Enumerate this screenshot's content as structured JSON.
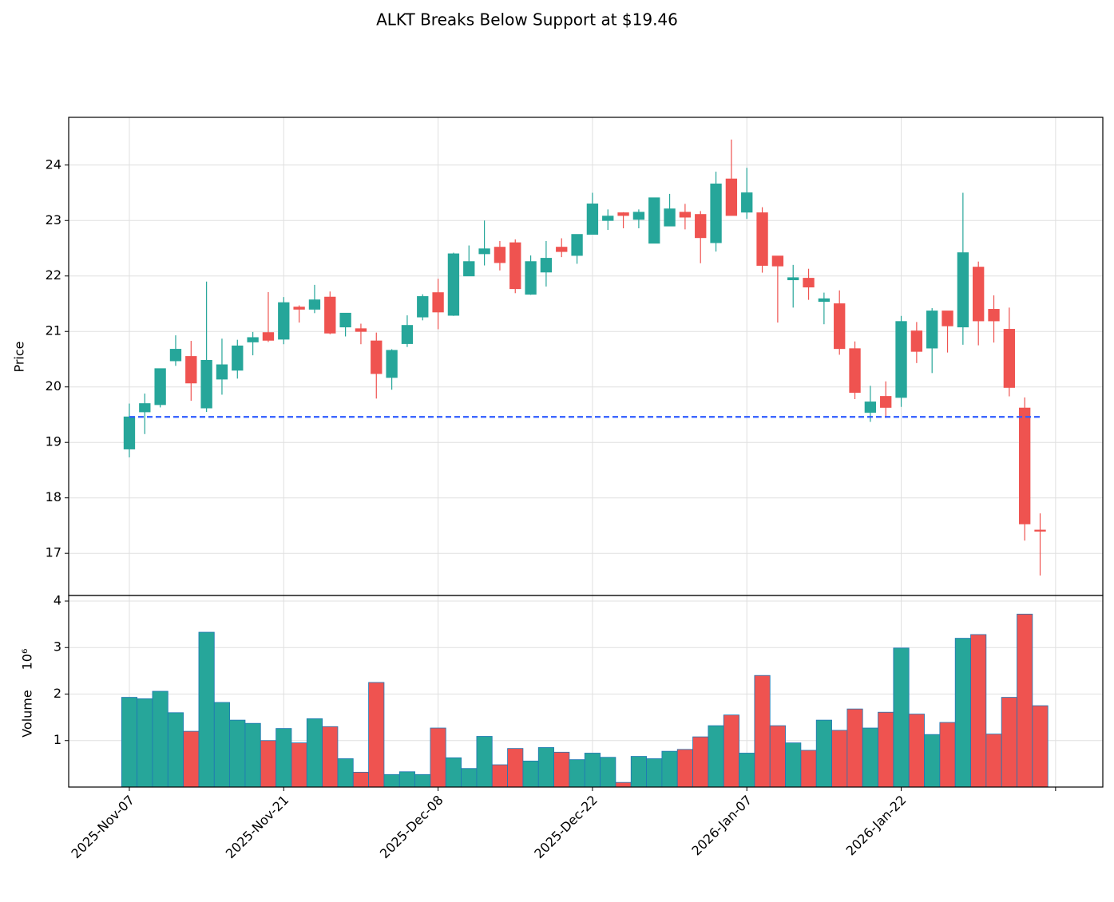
{
  "chart_data": {
    "type": "candlestick",
    "title": "ALKT Breaks Below Support at $19.46",
    "categories": [
      "2025-Nov-07",
      null,
      null,
      null,
      null,
      null,
      null,
      null,
      null,
      null,
      "2025-Nov-21",
      null,
      null,
      null,
      null,
      null,
      null,
      null,
      null,
      null,
      "2025-Dec-08",
      null,
      null,
      null,
      null,
      null,
      null,
      null,
      null,
      null,
      "2025-Dec-22",
      null,
      null,
      null,
      null,
      null,
      null,
      null,
      null,
      null,
      "2026-Jan-07",
      null,
      null,
      null,
      null,
      null,
      null,
      null,
      null,
      null,
      "2026-Jan-22",
      null,
      null,
      null,
      null,
      null,
      null,
      null,
      null,
      null
    ],
    "xlim": [
      -3.93,
      63.06
    ],
    "xticks": [
      0,
      10,
      20,
      30,
      40,
      50,
      60
    ],
    "open": [
      18.88,
      19.55,
      19.68,
      20.47,
      20.55,
      19.62,
      20.14,
      20.3,
      20.81,
      20.98,
      20.86,
      21.44,
      21.4,
      21.62,
      21.08,
      21.05,
      20.83,
      20.17,
      20.78,
      21.26,
      21.7,
      21.29,
      22.0,
      22.4,
      22.52,
      22.6,
      21.67,
      22.07,
      22.52,
      22.37,
      22.75,
      23.0,
      23.14,
      23.02,
      22.59,
      22.9,
      23.15,
      23.11,
      22.6,
      23.75,
      23.15,
      23.14,
      22.36,
      21.93,
      21.96,
      21.54,
      21.5,
      20.69,
      19.54,
      19.83,
      19.81,
      21.01,
      20.7,
      21.37,
      21.08,
      22.16,
      21.4,
      21.04,
      19.62,
      17.42
    ],
    "high": [
      19.7,
      19.88,
      20.33,
      20.93,
      20.83,
      21.9,
      20.87,
      20.85,
      20.99,
      21.71,
      21.62,
      21.47,
      21.84,
      21.72,
      21.33,
      21.14,
      20.98,
      20.68,
      21.29,
      21.67,
      21.95,
      22.42,
      22.55,
      23.0,
      22.63,
      22.66,
      22.37,
      22.63,
      22.68,
      22.75,
      23.5,
      23.2,
      23.15,
      23.2,
      23.41,
      23.48,
      23.3,
      23.17,
      23.88,
      24.46,
      23.95,
      23.24,
      22.36,
      22.2,
      22.13,
      21.7,
      21.74,
      20.82,
      20.02,
      20.1,
      21.28,
      21.17,
      21.42,
      21.37,
      23.5,
      22.26,
      21.65,
      21.43,
      19.81,
      17.72
    ],
    "low": [
      18.73,
      19.15,
      19.63,
      20.38,
      19.75,
      19.55,
      19.86,
      20.15,
      20.57,
      20.81,
      20.77,
      21.16,
      21.33,
      20.95,
      20.91,
      20.77,
      19.79,
      19.95,
      20.72,
      21.2,
      21.04,
      21.28,
      22.0,
      22.19,
      22.1,
      21.69,
      21.66,
      21.81,
      22.34,
      22.22,
      22.75,
      22.83,
      22.86,
      22.86,
      22.59,
      22.9,
      22.84,
      22.23,
      22.44,
      23.09,
      23.03,
      22.06,
      21.16,
      21.43,
      21.57,
      21.13,
      20.58,
      19.78,
      19.37,
      19.44,
      19.64,
      20.43,
      20.25,
      20.62,
      20.76,
      20.75,
      20.8,
      19.83,
      17.23,
      16.6
    ],
    "close": [
      19.46,
      19.7,
      20.33,
      20.68,
      20.07,
      20.48,
      20.4,
      20.74,
      20.89,
      20.84,
      21.52,
      21.4,
      21.57,
      20.97,
      21.33,
      21.0,
      20.24,
      20.66,
      21.11,
      21.63,
      21.35,
      22.4,
      22.26,
      22.49,
      22.24,
      21.77,
      22.26,
      22.32,
      22.44,
      22.75,
      23.3,
      23.08,
      23.09,
      23.15,
      23.41,
      23.21,
      23.06,
      22.69,
      23.66,
      23.09,
      23.5,
      22.19,
      22.18,
      21.97,
      21.8,
      21.59,
      20.69,
      19.9,
      19.73,
      19.63,
      21.18,
      20.64,
      21.37,
      21.1,
      22.42,
      21.19,
      21.19,
      19.99,
      17.53,
      17.4
    ],
    "volume": [
      1.93,
      1.9,
      2.06,
      1.6,
      1.2,
      3.33,
      1.82,
      1.44,
      1.37,
      1.0,
      1.26,
      0.95,
      1.47,
      1.3,
      0.61,
      0.32,
      2.25,
      0.27,
      0.33,
      0.27,
      1.27,
      0.63,
      0.4,
      1.09,
      0.48,
      0.83,
      0.56,
      0.85,
      0.75,
      0.59,
      0.73,
      0.64,
      0.1,
      0.66,
      0.61,
      0.77,
      0.81,
      1.08,
      1.32,
      1.55,
      0.73,
      2.4,
      1.32,
      0.95,
      0.79,
      1.44,
      1.22,
      1.68,
      1.27,
      1.61,
      2.99,
      1.57,
      1.13,
      1.39,
      3.2,
      3.28,
      1.14,
      1.93,
      3.72,
      1.75
    ],
    "up_color": "#26a69a",
    "down_color": "#ef5350",
    "volume_edge_color": "#1f77b4",
    "ylabel": "Price",
    "ylim": [
      16.24,
      24.86
    ],
    "yticks": [
      17,
      18,
      19,
      20,
      21,
      22,
      23,
      24
    ],
    "volume_label": "Volume",
    "volume_multiplier": "10⁶",
    "volume_ylim": [
      0,
      4.12
    ],
    "volume_yticks": [
      1,
      2,
      3,
      4
    ],
    "support_level": 19.46,
    "support_color": "#2e5bff",
    "grid": true
  }
}
